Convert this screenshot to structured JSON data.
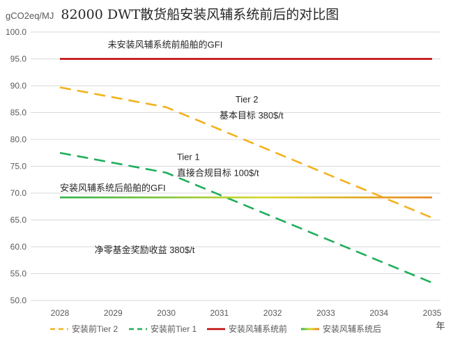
{
  "chart_data": {
    "type": "line",
    "title": "82000 DWT散货船安装风辅系统前后的对比图",
    "ylabel": "gCO2eq/MJ",
    "xlabel": "年",
    "x": [
      2028,
      2029,
      2030,
      2031,
      2032,
      2033,
      2034,
      2035
    ],
    "xlim": [
      2028,
      2035
    ],
    "ylim": [
      50.0,
      100.0
    ],
    "yticks": [
      "50.0",
      "55.0",
      "60.0",
      "65.0",
      "70.0",
      "75.0",
      "80.0",
      "85.0",
      "90.0",
      "95.0",
      "100.0"
    ],
    "grid": "horizontal",
    "legend_position": "bottom",
    "colors": {
      "tier2": "#F2B21C",
      "tier1": "#1FAE5A",
      "before": "#C00000",
      "after_start": "#2DB34A",
      "after_mid": "#D7D72A",
      "after_end": "#E8841E"
    },
    "series": [
      {
        "name": "安装前Tier 2",
        "style": "dashed",
        "x": [
          2028,
          2030,
          2035
        ],
        "values": [
          89.7,
          86.0,
          65.4
        ]
      },
      {
        "name": "安装前Tier 1",
        "style": "dashed",
        "x": [
          2028,
          2030,
          2035
        ],
        "values": [
          77.5,
          73.8,
          53.3
        ]
      },
      {
        "name": "安装风辅系统前",
        "style": "solid",
        "x": [
          2028,
          2035
        ],
        "values": [
          95.0,
          95.0
        ]
      },
      {
        "name": "安装风辅系统后",
        "style": "solid-gradient",
        "x": [
          2028,
          2035
        ],
        "values": [
          69.2,
          69.2
        ]
      }
    ],
    "annotations": [
      {
        "text": "未安装风辅系统前船舶的GFI",
        "x": 2028.9,
        "y": 97.1
      },
      {
        "text": "Tier 2",
        "x": 2031.3,
        "y": 86.9
      },
      {
        "text": "基本目标 380$/t",
        "x": 2031.0,
        "y": 83.9
      },
      {
        "text": "Tier 1",
        "x": 2030.2,
        "y": 76.2
      },
      {
        "text": "直接合规目标 100$/t",
        "x": 2030.2,
        "y": 73.2
      },
      {
        "text": "安装风辅系统后船舶的GFI",
        "x": 2028.0,
        "y": 70.4
      },
      {
        "text": "净零基金奖励收益 380$/t",
        "x": 2028.65,
        "y": 58.8
      }
    ]
  }
}
